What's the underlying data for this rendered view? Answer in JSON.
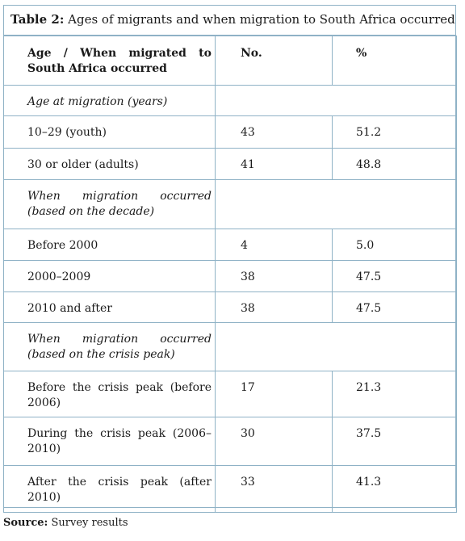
{
  "title": {
    "label": "Table 2:",
    "text": "Ages of migrants and when migration to South Africa occurred"
  },
  "header": {
    "col1": "Age / When migrated to South Africa occurred",
    "col2": "No.",
    "col3": "%"
  },
  "rows": [
    {
      "type": "section",
      "label": "Age at migration (years)"
    },
    {
      "type": "data",
      "label": "10–29 (youth)",
      "no": "43",
      "pct": "51.2"
    },
    {
      "type": "data",
      "label": "30 or older (adults)",
      "no": "41",
      "pct": "48.8"
    },
    {
      "type": "section",
      "label": "When migration occurred (based on the decade)"
    },
    {
      "type": "data",
      "label": "Before 2000",
      "no": "4",
      "pct": "5.0"
    },
    {
      "type": "data",
      "label": "2000–2009",
      "no": "38",
      "pct": "47.5"
    },
    {
      "type": "data",
      "label": "2010 and after",
      "no": "38",
      "pct": "47.5"
    },
    {
      "type": "section",
      "label": "When migration occurred (based on the crisis peak)"
    },
    {
      "type": "data",
      "label": "Before the crisis peak (before 2006)",
      "no": "17",
      "pct": "21.3"
    },
    {
      "type": "data",
      "label": "During the crisis peak (2006–2010)",
      "no": "30",
      "pct": "37.5"
    },
    {
      "type": "data",
      "label": "After the crisis peak (after 2010)",
      "no": "33",
      "pct": "41.3"
    }
  ],
  "source": {
    "label": "Source:",
    "text": "Survey results"
  }
}
